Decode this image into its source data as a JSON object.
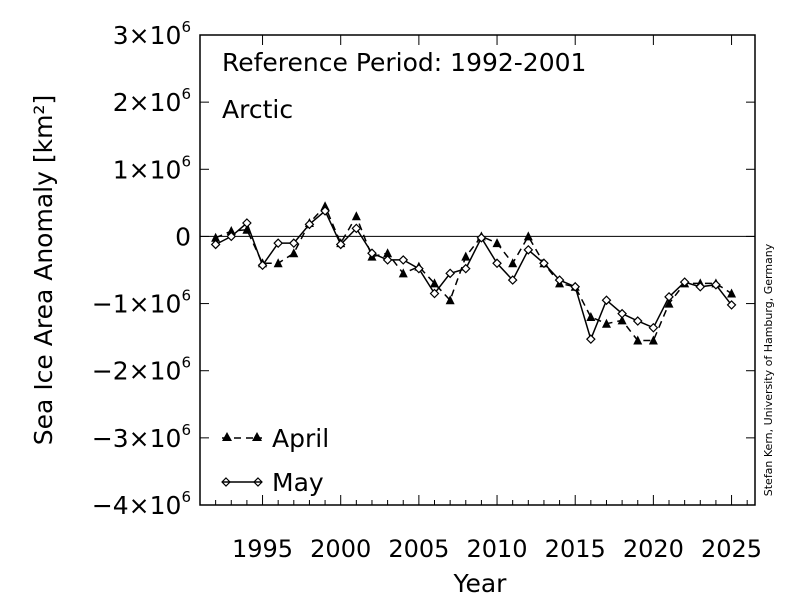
{
  "chart_data": {
    "type": "line",
    "annotations": [
      "Reference Period: 1992-2001",
      "Arctic"
    ],
    "xlabel": "Year",
    "ylabel": "Sea Ice Area Anomaly [km²]",
    "credit": "Stefan Kern, University of Hamburg, Germany",
    "xlim": [
      1991,
      2026.5
    ],
    "ylim": [
      -4000000,
      3000000
    ],
    "x_ticks": [
      1995,
      2000,
      2005,
      2010,
      2015,
      2020,
      2025
    ],
    "y_ticks": [
      {
        "value": 3000000,
        "mant": "3",
        "sign": ""
      },
      {
        "value": 2000000,
        "mant": "2",
        "sign": ""
      },
      {
        "value": 1000000,
        "mant": "1",
        "sign": ""
      },
      {
        "value": 0,
        "mant": "0",
        "sign": ""
      },
      {
        "value": -1000000,
        "mant": "1",
        "sign": "−"
      },
      {
        "value": -2000000,
        "mant": "2",
        "sign": "−"
      },
      {
        "value": -3000000,
        "mant": "3",
        "sign": "−"
      },
      {
        "value": -4000000,
        "mant": "4",
        "sign": "−"
      }
    ],
    "tick_times": "×10",
    "tick_exp": "6",
    "legend_position": "bottom-left",
    "x": [
      1992,
      1993,
      1994,
      1995,
      1996,
      1997,
      1998,
      1999,
      2000,
      2001,
      2002,
      2003,
      2004,
      2005,
      2006,
      2007,
      2008,
      2009,
      2010,
      2011,
      2012,
      2013,
      2014,
      2015,
      2016,
      2017,
      2018,
      2019,
      2020,
      2021,
      2022,
      2023,
      2024,
      2025
    ],
    "series": [
      {
        "name": "April",
        "style": "dashed",
        "marker": "triangle",
        "values": [
          -20000,
          80000,
          100000,
          -400000,
          -400000,
          -250000,
          200000,
          450000,
          -100000,
          300000,
          -300000,
          -250000,
          -550000,
          -450000,
          -700000,
          -950000,
          -300000,
          0,
          -100000,
          -400000,
          0,
          -400000,
          -700000,
          -750000,
          -1200000,
          -1300000,
          -1250000,
          -1550000,
          -1550000,
          -1000000,
          -700000,
          -700000,
          -700000,
          -850000
        ]
      },
      {
        "name": "May",
        "style": "solid",
        "marker": "diamond",
        "values": [
          -120000,
          0,
          200000,
          -430000,
          -100000,
          -100000,
          180000,
          380000,
          -120000,
          120000,
          -250000,
          -350000,
          -350000,
          -480000,
          -850000,
          -550000,
          -480000,
          -20000,
          -400000,
          -650000,
          -200000,
          -400000,
          -650000,
          -750000,
          -1530000,
          -950000,
          -1150000,
          -1260000,
          -1360000,
          -900000,
          -680000,
          -750000,
          -720000,
          -1020000
        ]
      }
    ]
  }
}
